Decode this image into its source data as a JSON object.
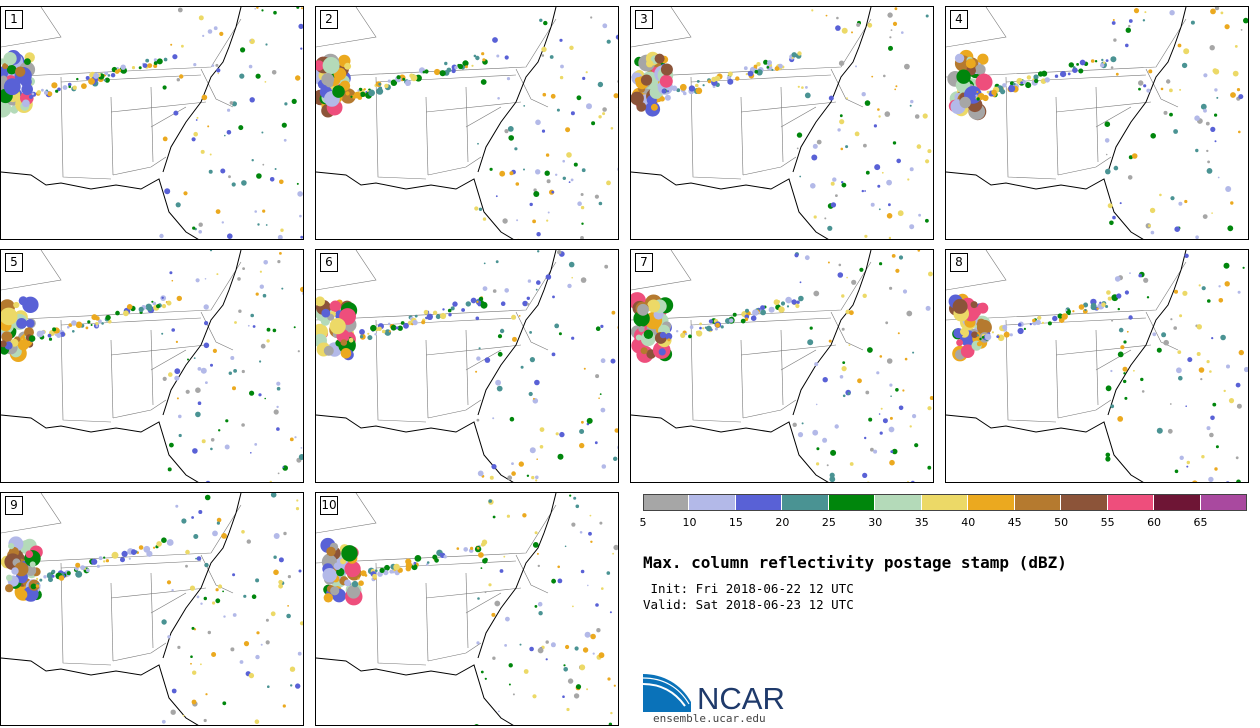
{
  "panels": [
    {
      "label": "1"
    },
    {
      "label": "2"
    },
    {
      "label": "3"
    },
    {
      "label": "4"
    },
    {
      "label": "5"
    },
    {
      "label": "6"
    },
    {
      "label": "7"
    },
    {
      "label": "8"
    },
    {
      "label": "9"
    },
    {
      "label": "10"
    }
  ],
  "colorbar": {
    "colors": [
      "#a6a6a6",
      "#b3b9e8",
      "#5961d6",
      "#4a9393",
      "#00860c",
      "#b4dab9",
      "#ecd967",
      "#eba91f",
      "#b57a2f",
      "#8c5439",
      "#ee4e7c",
      "#6e1535",
      "#a9499f"
    ],
    "ticks": [
      "5",
      "10",
      "15",
      "20",
      "25",
      "30",
      "35",
      "40",
      "45",
      "50",
      "55",
      "60",
      "65"
    ]
  },
  "title": "Max. column reflectivity postage stamp (dBZ)",
  "init": " Init: Fri 2018-06-22 12 UTC",
  "valid": "Valid: Sat 2018-06-23 12 UTC",
  "logo": {
    "text": "NCAR",
    "url": "ensemble.ucar.edu",
    "color": "#0a72b9"
  }
}
